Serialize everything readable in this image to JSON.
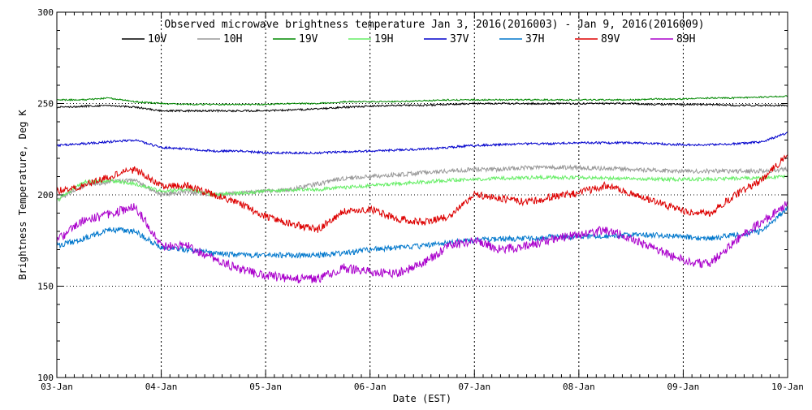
{
  "chart_data": {
    "type": "line",
    "title": "Observed microwave brightness temperature Jan  3, 2016(2016003) - Jan  9, 2016(2016009)",
    "xlabel": "Date (EST)",
    "ylabel": "Brightness Temperature, Deg K",
    "ylim": [
      100,
      300
    ],
    "xlim": [
      0,
      7
    ],
    "y_ticks": [
      "100",
      "150",
      "200",
      "250",
      "300"
    ],
    "x_ticks": [
      "03-Jan",
      "04-Jan",
      "05-Jan",
      "06-Jan",
      "07-Jan",
      "08-Jan",
      "09-Jan",
      "10-Jan"
    ],
    "grid": "dotted",
    "legend_placement": "top",
    "x_unit": "days since Jan 3, 2016 00:00 EST",
    "series": [
      {
        "name": "10V",
        "color": "#000000",
        "x": [
          0,
          0.25,
          0.5,
          0.75,
          1.0,
          1.25,
          1.5,
          1.75,
          2.0,
          2.25,
          2.5,
          2.75,
          3.0,
          3.25,
          3.5,
          3.75,
          4.0,
          4.25,
          4.5,
          4.75,
          5.0,
          5.25,
          5.5,
          5.75,
          6.0,
          6.25,
          6.5,
          6.75,
          7.0
        ],
        "values": [
          248,
          248.5,
          249,
          248,
          246,
          246,
          246,
          246,
          246,
          246.5,
          247,
          248,
          248.5,
          249,
          249,
          249.5,
          250,
          250,
          250,
          250,
          250,
          250,
          250,
          249.5,
          249.5,
          249.5,
          249,
          249,
          249
        ]
      },
      {
        "name": "10H",
        "color": "#999999",
        "x": [
          0,
          0.25,
          0.5,
          0.75,
          1.0,
          1.25,
          1.5,
          1.75,
          2.0,
          2.25,
          2.5,
          2.75,
          3.0,
          3.25,
          3.5,
          3.75,
          4.0,
          4.25,
          4.5,
          4.75,
          5.0,
          5.25,
          5.5,
          5.75,
          6.0,
          6.25,
          6.5,
          6.75,
          7.0
        ],
        "values": [
          197,
          205,
          207,
          208,
          200,
          202,
          200,
          201,
          202,
          203,
          206,
          209,
          210,
          211,
          212,
          213,
          214,
          214,
          215,
          215,
          215,
          214.5,
          214,
          213.5,
          213,
          213,
          213,
          213,
          214
        ]
      },
      {
        "name": "19V",
        "color": "#008800",
        "x": [
          0,
          0.25,
          0.5,
          0.75,
          1.0,
          1.25,
          1.5,
          1.75,
          2.0,
          2.25,
          2.5,
          2.75,
          3.0,
          3.25,
          3.5,
          3.75,
          4.0,
          4.25,
          4.5,
          4.75,
          5.0,
          5.25,
          5.5,
          5.75,
          6.0,
          6.25,
          6.5,
          6.75,
          7.0
        ],
        "values": [
          252,
          252,
          253,
          251,
          250,
          249.5,
          249.5,
          249.5,
          249.5,
          250,
          250,
          251,
          251,
          251,
          251.5,
          252,
          252,
          252,
          252,
          252,
          252,
          252,
          252,
          252.5,
          252.5,
          253,
          253,
          253.5,
          254
        ]
      },
      {
        "name": "19H",
        "color": "#66ee66",
        "x": [
          0,
          0.25,
          0.5,
          0.75,
          1.0,
          1.25,
          1.5,
          1.75,
          2.0,
          2.25,
          2.5,
          2.75,
          3.0,
          3.25,
          3.5,
          3.75,
          4.0,
          4.25,
          4.5,
          4.75,
          5.0,
          5.25,
          5.5,
          5.75,
          6.0,
          6.25,
          6.5,
          6.75,
          7.0
        ],
        "values": [
          197,
          207,
          208,
          206,
          202,
          203,
          200,
          201,
          202,
          202.5,
          203,
          204,
          205,
          206,
          207,
          208,
          208.5,
          209,
          209.5,
          209.5,
          209.5,
          209,
          209,
          208.5,
          208.5,
          208.5,
          209,
          209.5,
          210
        ]
      },
      {
        "name": "37V",
        "color": "#0000cc",
        "x": [
          0,
          0.25,
          0.5,
          0.75,
          1.0,
          1.25,
          1.5,
          1.75,
          2.0,
          2.25,
          2.5,
          2.75,
          3.0,
          3.25,
          3.5,
          3.75,
          4.0,
          4.25,
          4.5,
          4.75,
          5.0,
          5.25,
          5.5,
          5.75,
          6.0,
          6.25,
          6.5,
          6.75,
          7.0
        ],
        "values": [
          227,
          228,
          229,
          230,
          226,
          225,
          224,
          224,
          223,
          223,
          223,
          223.5,
          224,
          224.5,
          225,
          226,
          227,
          227.5,
          228,
          228,
          228.5,
          228.5,
          228.5,
          228,
          227.5,
          227.5,
          228,
          229,
          234
        ]
      },
      {
        "name": "37H",
        "color": "#0077cc",
        "x": [
          0,
          0.25,
          0.5,
          0.75,
          1.0,
          1.25,
          1.5,
          1.75,
          2.0,
          2.25,
          2.5,
          2.75,
          3.0,
          3.25,
          3.5,
          3.75,
          4.0,
          4.25,
          4.5,
          4.75,
          5.0,
          5.25,
          5.5,
          5.75,
          6.0,
          6.25,
          6.5,
          6.75,
          7.0
        ],
        "values": [
          172,
          176,
          181,
          180,
          171,
          170,
          168,
          167,
          167,
          167,
          167,
          168,
          170,
          171,
          172,
          174,
          175,
          176,
          176,
          177,
          177,
          177.5,
          178,
          178,
          177,
          176,
          178,
          180,
          193
        ]
      },
      {
        "name": "89V",
        "color": "#dd0000",
        "x": [
          0,
          0.25,
          0.5,
          0.75,
          1.0,
          1.25,
          1.5,
          1.75,
          2.0,
          2.25,
          2.5,
          2.75,
          3.0,
          3.25,
          3.5,
          3.75,
          4.0,
          4.25,
          4.5,
          4.75,
          5.0,
          5.25,
          5.5,
          5.75,
          6.0,
          6.25,
          6.5,
          6.75,
          7.0
        ],
        "values": [
          202,
          205,
          210,
          214,
          205,
          205,
          200,
          195,
          188,
          184,
          181,
          191,
          192,
          187,
          185,
          188,
          200,
          198,
          196,
          199,
          201,
          205,
          201,
          196,
          191,
          190,
          200,
          208,
          222
        ]
      },
      {
        "name": "89H",
        "color": "#aa00cc",
        "x": [
          0,
          0.25,
          0.5,
          0.75,
          1.0,
          1.25,
          1.5,
          1.75,
          2.0,
          2.25,
          2.5,
          2.75,
          3.0,
          3.25,
          3.5,
          3.75,
          4.0,
          4.25,
          4.5,
          4.75,
          5.0,
          5.25,
          5.5,
          5.75,
          6.0,
          6.25,
          6.5,
          6.75,
          7.0
        ],
        "values": [
          175,
          186,
          189,
          194,
          172,
          172,
          165,
          159,
          156,
          154,
          154,
          160,
          158,
          157,
          162,
          172,
          175,
          170,
          172,
          176,
          178,
          181,
          176,
          170,
          164,
          162,
          175,
          185,
          195
        ]
      }
    ]
  }
}
